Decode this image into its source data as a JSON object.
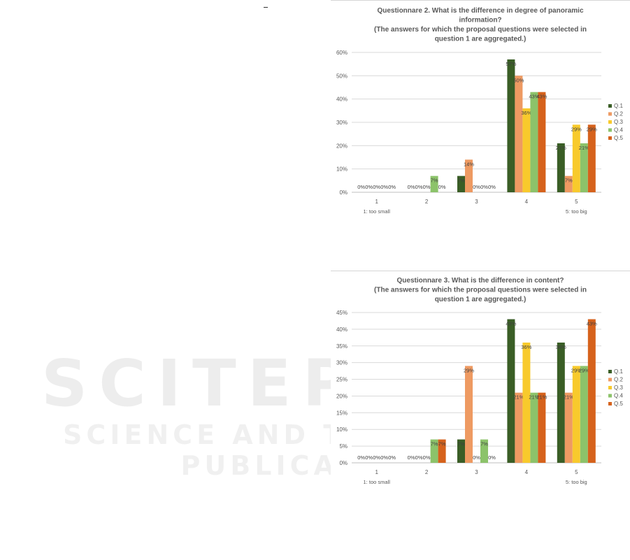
{
  "colors": {
    "Q.1": "#3a5e26",
    "Q.2": "#ee9a62",
    "Q.3": "#f8ca2c",
    "Q.4": "#8cc36a",
    "Q.5": "#d6621c"
  },
  "watermark": {
    "line1": "SCITEPRESS",
    "line2": "SCIENCE AND TECHNOLOGY PUBLICATIONS"
  },
  "chart_data": [
    {
      "type": "bar",
      "title_lines": [
        "Questionnare 2. What is the difference in degree of panoramic",
        "information?",
        "(The answers for which the proposal questions were selected in",
        "question 1 are aggregated.)"
      ],
      "categories": [
        "1",
        "2",
        "3",
        "4",
        "5"
      ],
      "category_notes": {
        "1": "1: too small",
        "5": "5: too big"
      },
      "ylim": [
        0,
        60
      ],
      "y_ticks": [
        "0%",
        "10%",
        "20%",
        "30%",
        "40%",
        "50%",
        "60%"
      ],
      "grid": true,
      "legend_position": "right",
      "series": [
        {
          "name": "Q.1",
          "values": [
            0,
            0,
            7,
            57,
            21
          ],
          "labels": [
            "0%",
            "0%",
            "7%",
            "57%",
            "21%"
          ]
        },
        {
          "name": "Q.2",
          "values": [
            0,
            0,
            14,
            50,
            7
          ],
          "labels": [
            "0%",
            "0%",
            "14%",
            "50%",
            "7%"
          ]
        },
        {
          "name": "Q.3",
          "values": [
            0,
            0,
            0,
            36,
            29
          ],
          "labels": [
            "0%",
            "0%",
            "0%",
            "36%",
            "29%"
          ]
        },
        {
          "name": "Q.4",
          "values": [
            0,
            7,
            0,
            43,
            21
          ],
          "labels": [
            "0%",
            "7%",
            "0%",
            "43%",
            "21%"
          ]
        },
        {
          "name": "Q.5",
          "values": [
            0,
            0,
            0,
            43,
            29
          ],
          "labels": [
            "0%",
            "0%",
            "0%",
            "43%",
            "29%"
          ]
        }
      ]
    },
    {
      "type": "bar",
      "title_lines": [
        "Questionnare 3. What is the difference in content?",
        "(The answers for which the proposal questions were selected in",
        "question 1 are aggregated.)"
      ],
      "categories": [
        "1",
        "2",
        "3",
        "4",
        "5"
      ],
      "category_notes": {
        "1": "1: too small",
        "5": "5: too big"
      },
      "ylim": [
        0,
        45
      ],
      "y_ticks": [
        "0%",
        "5%",
        "10%",
        "15%",
        "20%",
        "25%",
        "30%",
        "35%",
        "40%",
        "45%"
      ],
      "grid": true,
      "legend_position": "right",
      "series": [
        {
          "name": "Q.1",
          "values": [
            0,
            0,
            7,
            43,
            36
          ],
          "labels": [
            "0%",
            "0%",
            "7%",
            "43%",
            "36%"
          ]
        },
        {
          "name": "Q.2",
          "values": [
            0,
            0,
            29,
            21,
            21
          ],
          "labels": [
            "0%",
            "0%",
            "29%",
            "21%",
            "21%"
          ]
        },
        {
          "name": "Q.3",
          "values": [
            0,
            0,
            0,
            36,
            29
          ],
          "labels": [
            "0%",
            "0%",
            "0%",
            "36%",
            "29%"
          ]
        },
        {
          "name": "Q.4",
          "values": [
            0,
            7,
            7,
            21,
            29
          ],
          "labels": [
            "0%",
            "7%",
            "7%",
            "21%",
            "29%"
          ]
        },
        {
          "name": "Q.5",
          "values": [
            0,
            7,
            0,
            21,
            43
          ],
          "labels": [
            "0%",
            "7%",
            "0%",
            "21%",
            "43%"
          ]
        }
      ]
    }
  ]
}
